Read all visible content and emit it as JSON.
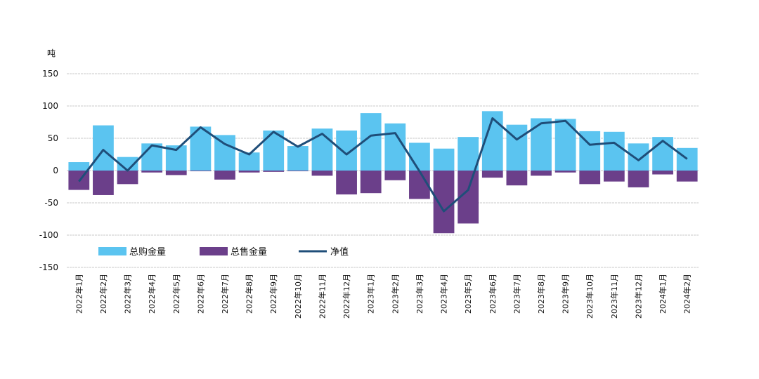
{
  "chart_data": {
    "type": "bar",
    "unit_label": "吨",
    "categories": [
      "2022年1月",
      "2022年2月",
      "2022年3月",
      "2022年4月",
      "2022年5月",
      "2022年6月",
      "2022年7月",
      "2022年8月",
      "2022年9月",
      "2022年10月",
      "2022年11月",
      "2022年12月",
      "2023年1月",
      "2023年2月",
      "2023年3月",
      "2023年4月",
      "2023年5月",
      "2023年6月",
      "2023年7月",
      "2023年8月",
      "2023年9月",
      "2023年10月",
      "2023年11月",
      "2023年12月",
      "2024年1月",
      "2024年2月"
    ],
    "ylim": [
      -150,
      150
    ],
    "yticks": [
      150,
      100,
      50,
      0,
      -50,
      -100,
      -150
    ],
    "grid": true,
    "legend_position": "bottom-left",
    "series": [
      {
        "name": "总购金量",
        "type": "bar",
        "color": "#5bc4f0",
        "values": [
          13,
          70,
          21,
          42,
          39,
          68,
          55,
          28,
          62,
          38,
          65,
          62,
          89,
          73,
          43,
          34,
          52,
          92,
          71,
          81,
          80,
          61,
          60,
          42,
          52,
          35
        ]
      },
      {
        "name": "总售金量",
        "type": "bar",
        "color": "#6b3f8a",
        "values": [
          -30,
          -38,
          -21,
          -3,
          -7,
          -1,
          -14,
          -3,
          -2,
          -1,
          -8,
          -37,
          -35,
          -15,
          -44,
          -97,
          -82,
          -11,
          -23,
          -8,
          -3,
          -21,
          -17,
          -26,
          -6,
          -17
        ]
      },
      {
        "name": "净值",
        "type": "line",
        "color": "#1f4e79",
        "values": [
          -17,
          32,
          0,
          39,
          32,
          67,
          41,
          25,
          60,
          37,
          57,
          25,
          54,
          58,
          -1,
          -63,
          -30,
          81,
          48,
          73,
          77,
          40,
          43,
          16,
          46,
          18
        ]
      }
    ]
  }
}
